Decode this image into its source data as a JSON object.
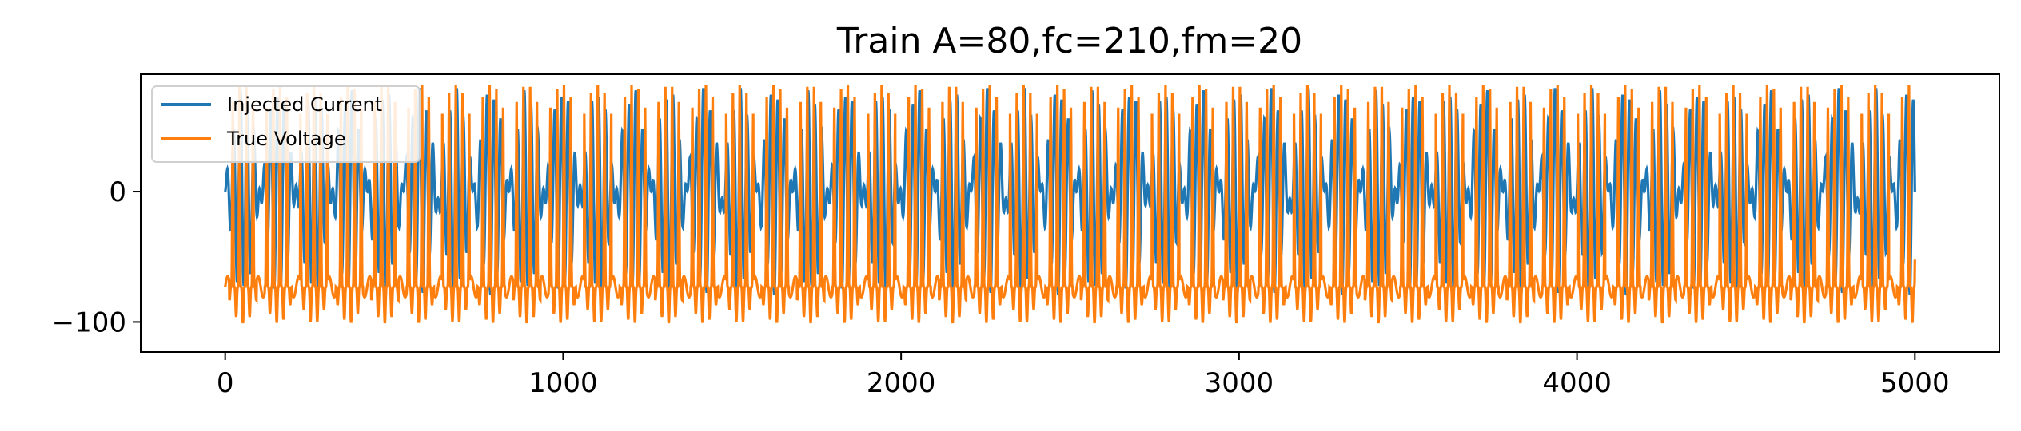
{
  "chart_data": {
    "type": "line",
    "title": "Train A=80,fc=210,fm=20",
    "xlabel": "",
    "ylabel": "",
    "xlim": [
      -250,
      5250
    ],
    "ylim": [
      -123,
      90
    ],
    "xticks": [
      0,
      1000,
      2000,
      3000,
      4000,
      5000
    ],
    "xtick_labels": [
      "0",
      "1000",
      "2000",
      "3000",
      "4000",
      "5000"
    ],
    "yticks": [
      0,
      -100
    ],
    "ytick_labels": [
      "0",
      "−100"
    ],
    "grid": false,
    "legend": "upper-left",
    "series": [
      {
        "name": "Injected Current",
        "color": "#1f77b4",
        "formula": "80 * sin(2*pi*t/210) * sin(2*pi*t/20) (approximate)",
        "x_range": [
          0,
          5000
        ],
        "y_range": [
          -80,
          80
        ]
      },
      {
        "name": "True Voltage",
        "color": "#ff7f0e",
        "baseline": -65,
        "x_range": [
          0,
          5000
        ],
        "y_range": [
          -110,
          70
        ]
      }
    ]
  }
}
